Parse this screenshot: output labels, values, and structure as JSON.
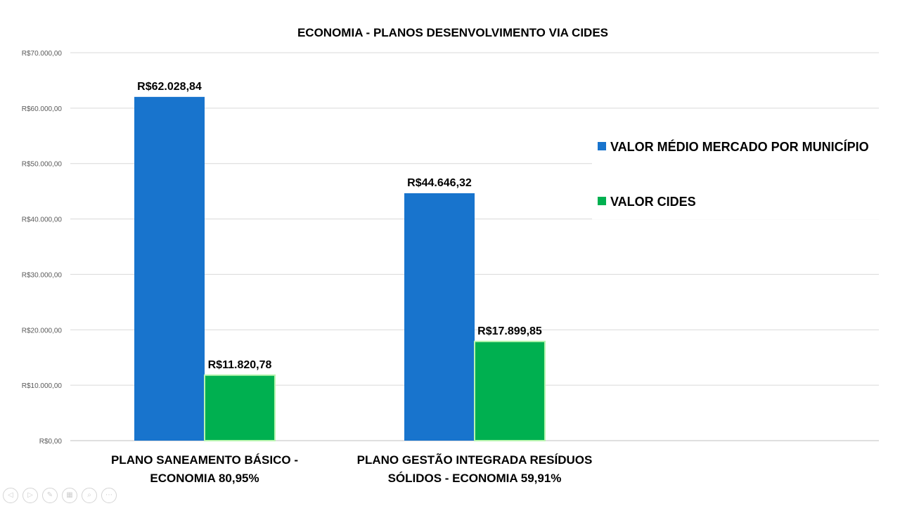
{
  "chart_data": {
    "type": "bar",
    "title": "ECONOMIA - PLANOS DESENVOLVIMENTO VIA CIDES",
    "categories": [
      [
        "PLANO SANEAMENTO BÁSICO -",
        "ECONOMIA 80,95%"
      ],
      [
        "PLANO GESTÃO INTEGRADA RESÍDUOS",
        "SÓLIDOS  - ECONOMIA 59,91%"
      ]
    ],
    "series": [
      {
        "name": "VALOR MÉDIO MERCADO POR MUNICÍPIO",
        "color": "#1874CD",
        "values": [
          62028.84,
          44646.32
        ],
        "labels": [
          "R$62.028,84",
          "R$44.646,32"
        ]
      },
      {
        "name": "VALOR CIDES",
        "color": "#00B050",
        "values": [
          11820.78,
          17899.85
        ],
        "labels": [
          "R$11.820,78",
          "R$17.899,85"
        ]
      }
    ],
    "ylim": [
      0,
      70000
    ],
    "yticks": [
      {
        "value": 0,
        "label": "R$0,00"
      },
      {
        "value": 10000,
        "label": "R$10.000,00"
      },
      {
        "value": 20000,
        "label": "R$20.000,00"
      },
      {
        "value": 30000,
        "label": "R$30.000,00"
      },
      {
        "value": 40000,
        "label": "R$40.000,00"
      },
      {
        "value": 50000,
        "label": "R$50.000,00"
      },
      {
        "value": 60000,
        "label": "R$60.000,00"
      },
      {
        "value": 70000,
        "label": "R$70.000,00"
      }
    ],
    "grid": true,
    "legend_position": "right"
  },
  "toolbar": {
    "buttons": [
      {
        "name": "previous-slide-button",
        "icon": "previous-icon",
        "glyph": "◁"
      },
      {
        "name": "next-slide-button",
        "icon": "next-icon",
        "glyph": "▷"
      },
      {
        "name": "pen-tool-button",
        "icon": "pen-icon",
        "glyph": "✎"
      },
      {
        "name": "slides-overview-button",
        "icon": "grid-icon",
        "glyph": "▦"
      },
      {
        "name": "zoom-button",
        "icon": "magnifier-icon",
        "glyph": "⌕"
      },
      {
        "name": "more-options-button",
        "icon": "ellipsis-icon",
        "glyph": "⋯"
      }
    ]
  }
}
